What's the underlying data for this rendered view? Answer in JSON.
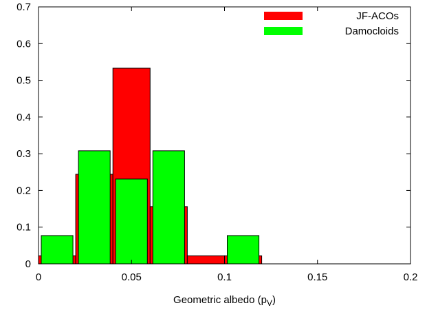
{
  "chart_data": {
    "type": "bar",
    "title": "",
    "xlabel": "Geometric albedo (p",
    "xlabel_sub": "V",
    "xlabel_close": ")",
    "ylabel": "",
    "xlim": [
      0,
      0.2
    ],
    "ylim": [
      0,
      0.7
    ],
    "grid": false,
    "legend_position": "top-right",
    "x_ticks": [
      "0",
      "0.05",
      "0.1",
      "0.15",
      "0.2"
    ],
    "x_tick_values": [
      0,
      0.05,
      0.1,
      0.15,
      0.2
    ],
    "y_ticks": [
      "0",
      "0.1",
      "0.2",
      "0.3",
      "0.4",
      "0.5",
      "0.6",
      "0.7"
    ],
    "y_tick_values": [
      0,
      0.1,
      0.2,
      0.3,
      0.4,
      0.5,
      0.6,
      0.7
    ],
    "bin_width": 0.02,
    "series": [
      {
        "name": "JF-ACOs",
        "color": "#ff0000",
        "bins": [
          {
            "x0": 0.0,
            "x1": 0.02,
            "value": 0.022
          },
          {
            "x0": 0.02,
            "x1": 0.04,
            "value": 0.244
          },
          {
            "x0": 0.04,
            "x1": 0.06,
            "value": 0.533
          },
          {
            "x0": 0.06,
            "x1": 0.08,
            "value": 0.156
          },
          {
            "x0": 0.08,
            "x1": 0.1,
            "value": 0.022
          },
          {
            "x0": 0.1,
            "x1": 0.12,
            "value": 0.022
          }
        ]
      },
      {
        "name": "Damocloids",
        "color": "#00ff00",
        "bins": [
          {
            "x0": 0.0,
            "x1": 0.02,
            "value": 0.077
          },
          {
            "x0": 0.02,
            "x1": 0.04,
            "value": 0.308
          },
          {
            "x0": 0.04,
            "x1": 0.06,
            "value": 0.231
          },
          {
            "x0": 0.06,
            "x1": 0.08,
            "value": 0.308
          },
          {
            "x0": 0.1,
            "x1": 0.12,
            "value": 0.077
          }
        ]
      }
    ]
  }
}
